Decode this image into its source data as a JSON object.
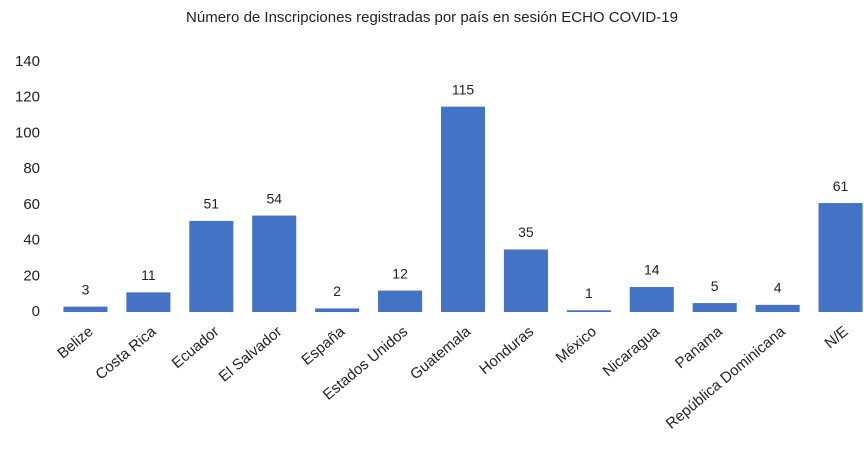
{
  "chart_data": {
    "type": "bar",
    "title": "Número de Inscripciones registradas por país en sesión ECHO COVID-19",
    "categories": [
      "Belize",
      "Costa Rica",
      "Ecuador",
      "El Salvador",
      "España",
      "Estados Unidos",
      "Guatemala",
      "Honduras",
      "México",
      "Nicaragua",
      "Panama",
      "República Dominicana",
      "N/E"
    ],
    "values": [
      3,
      11,
      51,
      54,
      2,
      12,
      115,
      35,
      1,
      14,
      5,
      4,
      61
    ],
    "color": "#4472c4",
    "ylim": [
      0,
      140
    ],
    "yticks": [
      0,
      20,
      40,
      60,
      80,
      100,
      120,
      140
    ],
    "grid": false
  }
}
